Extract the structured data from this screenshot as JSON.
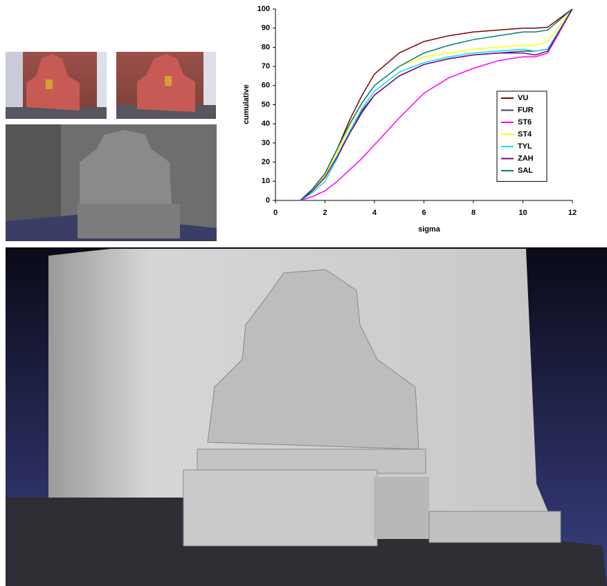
{
  "chart_data": {
    "type": "line",
    "x_label": "sigma",
    "y_label": "cumulative",
    "x": [
      1,
      1.5,
      2,
      2.5,
      3,
      3.5,
      4,
      5,
      6,
      7,
      8,
      9,
      10,
      10.5,
      11,
      12
    ],
    "series": [
      {
        "name": "VU",
        "color": "#7b0000",
        "values": [
          0,
          6,
          14,
          27,
          42,
          55,
          66,
          77,
          83,
          86,
          88,
          89,
          90,
          90,
          90.5,
          100
        ]
      },
      {
        "name": "FUR",
        "color": "#3a3a7a",
        "values": [
          0,
          5,
          12,
          23,
          36,
          47,
          55,
          65,
          71,
          74,
          76,
          77,
          78,
          78,
          79,
          100
        ]
      },
      {
        "name": "ST6",
        "color": "#ff00ff",
        "values": [
          0,
          2,
          5,
          10,
          16,
          22,
          29,
          43,
          56,
          64,
          69,
          73,
          75,
          75,
          77,
          100
        ]
      },
      {
        "name": "ST4",
        "color": "#ffff00",
        "values": [
          0,
          5,
          13,
          25,
          39,
          51,
          60,
          70,
          75,
          77,
          79,
          80,
          81,
          81,
          83,
          100
        ]
      },
      {
        "name": "TYL",
        "color": "#00e0ff",
        "values": [
          0,
          4,
          10,
          22,
          36,
          48,
          57,
          67,
          72,
          75,
          77,
          78,
          79,
          78,
          79,
          100
        ]
      },
      {
        "name": "ZAH",
        "color": "#800080",
        "values": [
          0,
          5,
          12,
          23,
          35,
          46,
          55,
          65,
          71,
          74,
          76,
          77,
          77,
          76,
          78,
          100
        ]
      },
      {
        "name": "SAL",
        "color": "#007b7b",
        "values": [
          0,
          6,
          14,
          27,
          40,
          51,
          60,
          70,
          77,
          81,
          84,
          86,
          88,
          88,
          89,
          100
        ]
      }
    ],
    "xlim": [
      0,
      12
    ],
    "ylim": [
      0,
      100
    ],
    "xticks": [
      0,
      2,
      4,
      6,
      8,
      10,
      12
    ],
    "yticks": [
      0,
      10,
      20,
      30,
      40,
      50,
      60,
      70,
      80,
      90,
      100
    ],
    "grid": false,
    "legend": "lower right"
  }
}
